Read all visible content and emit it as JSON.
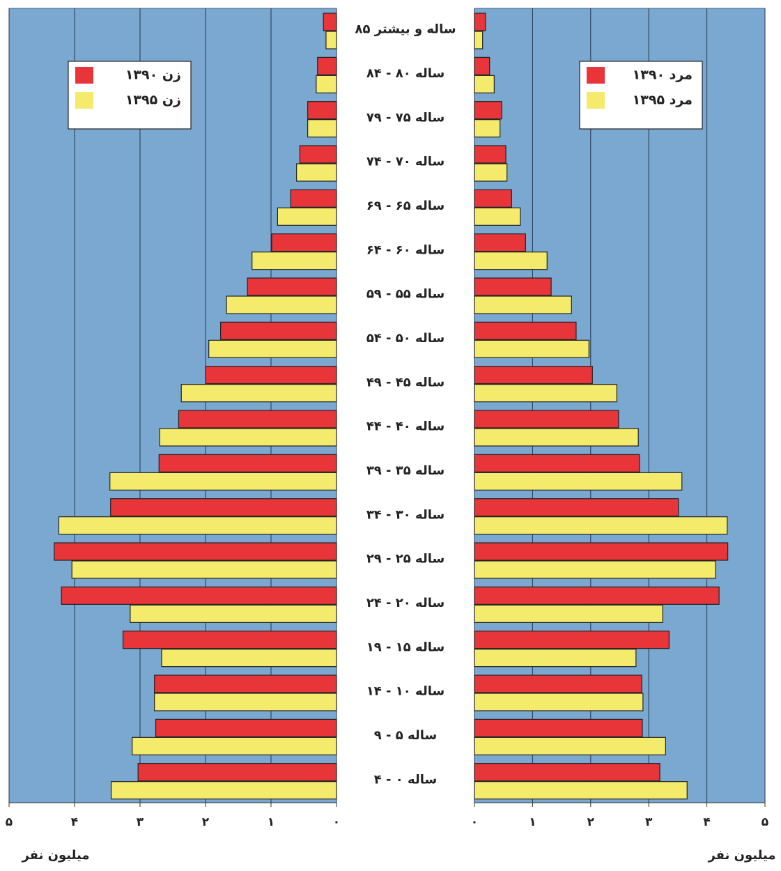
{
  "chart_data": [
    {
      "type": "bar",
      "orientation": "horizontal",
      "xlabel": "میلیون نفر",
      "legend": "upper left",
      "grid": true,
      "categories": [
        "۸۵ ساله و بیشتر",
        "۸۴ - ۸۰ ساله",
        "۷۹ - ۷۵ ساله",
        "۷۴ - ۷۰ ساله",
        "۶۹ - ۶۵ ساله",
        "۶۴ - ۶۰ ساله",
        "۵۹ - ۵۵ ساله",
        "۵۴ - ۵۰ ساله",
        "۴۹ - ۴۵ ساله",
        "۴۴ - ۴۰ ساله",
        "۳۹ - ۳۵ ساله",
        "۳۴ - ۳۰ ساله",
        "۲۹ - ۲۵ ساله",
        "۲۴ - ۲۰ ساله",
        "۱۹ - ۱۵ ساله",
        "۱۴ - ۱۰ ساله",
        "۹ - ۵ ساله",
        "۴ - ۰ ساله"
      ],
      "xlim": [
        5,
        0
      ],
      "xticks": [
        {
          "value": 5,
          "label": "۵"
        },
        {
          "value": 4,
          "label": "۴"
        },
        {
          "value": 3,
          "label": "۳"
        },
        {
          "value": 2,
          "label": "۲"
        },
        {
          "value": 1,
          "label": "۱"
        },
        {
          "value": 0,
          "label": "۰"
        }
      ],
      "series": [
        {
          "name": "زن ۱۳۹۰",
          "color": "#e8353a",
          "values": [
            0.2,
            0.29,
            0.44,
            0.56,
            0.7,
            0.99,
            1.36,
            1.77,
            2.0,
            2.41,
            2.71,
            3.45,
            4.31,
            4.2,
            3.26,
            2.78,
            2.76,
            3.03
          ]
        },
        {
          "name": "زن ۱۳۹۵",
          "color": "#f4ea6c",
          "values": [
            0.16,
            0.31,
            0.44,
            0.61,
            0.9,
            1.29,
            1.68,
            1.95,
            2.37,
            2.7,
            3.46,
            4.24,
            4.04,
            3.15,
            2.67,
            2.78,
            3.12,
            3.44
          ]
        }
      ]
    },
    {
      "type": "bar",
      "orientation": "horizontal",
      "xlabel": "میلیون نفر",
      "legend": "upper right",
      "grid": true,
      "xlim": [
        0,
        5
      ],
      "xticks": [
        {
          "value": 0,
          "label": "۰"
        },
        {
          "value": 1,
          "label": "۱"
        },
        {
          "value": 2,
          "label": "۲"
        },
        {
          "value": 3,
          "label": "۳"
        },
        {
          "value": 4,
          "label": "۴"
        },
        {
          "value": 5,
          "label": "۵"
        }
      ],
      "series": [
        {
          "name": "مرد ۱۳۹۰",
          "color": "#e8353a",
          "values": [
            0.19,
            0.26,
            0.47,
            0.54,
            0.64,
            0.88,
            1.32,
            1.75,
            2.03,
            2.48,
            2.84,
            3.51,
            4.36,
            4.21,
            3.35,
            2.88,
            2.89,
            3.19
          ]
        },
        {
          "name": "مرد ۱۳۹۵",
          "color": "#f4ea6c",
          "values": [
            0.14,
            0.34,
            0.44,
            0.56,
            0.79,
            1.25,
            1.67,
            1.97,
            2.45,
            2.82,
            3.57,
            4.35,
            4.15,
            3.24,
            2.78,
            2.9,
            3.29,
            3.66
          ]
        }
      ]
    }
  ]
}
